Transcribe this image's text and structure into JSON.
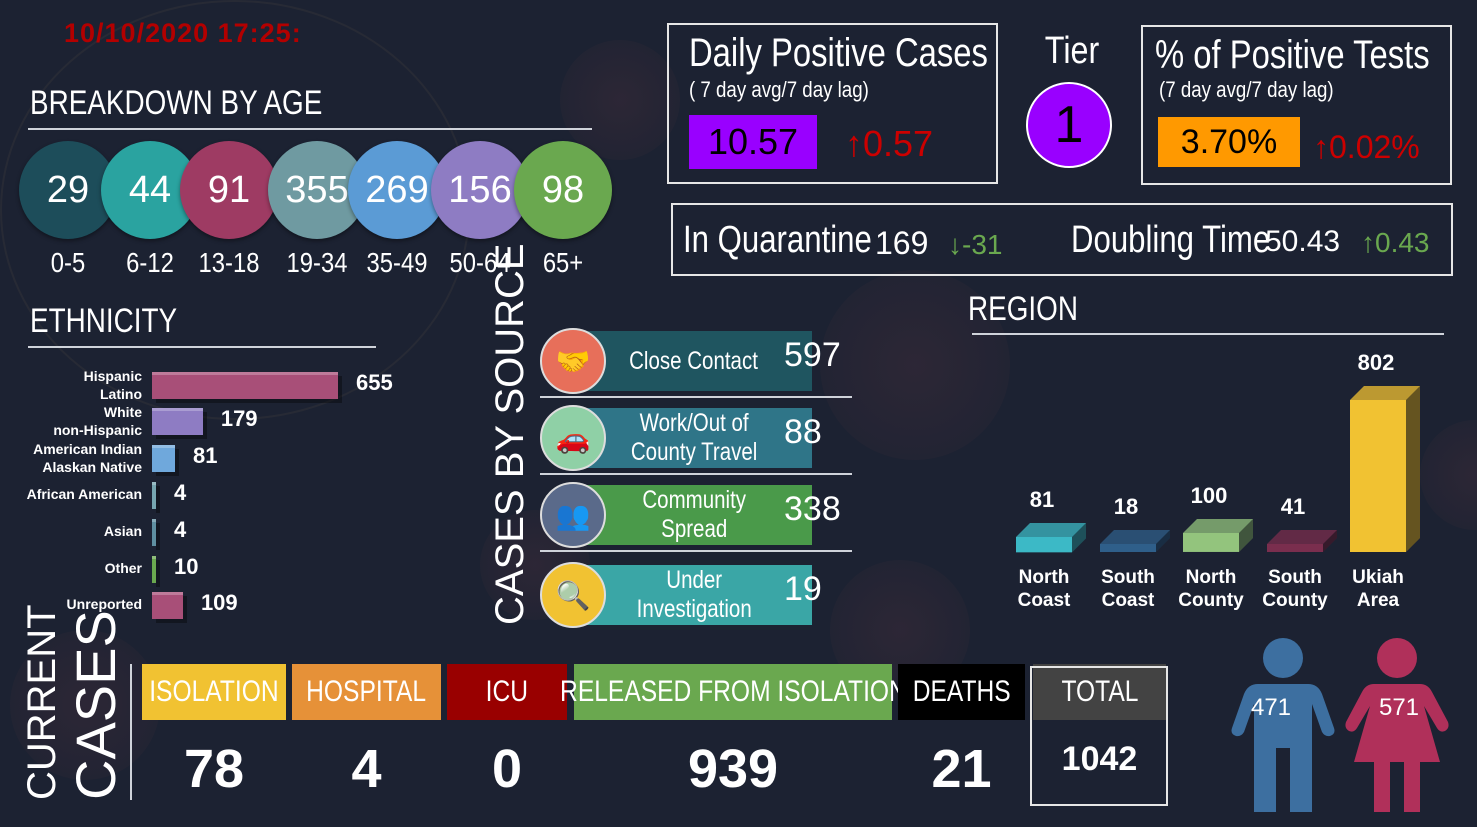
{
  "timestamp": "10/10/2020 17:25:",
  "age": {
    "title": "BREAKDOWN BY AGE",
    "groups": [
      {
        "label": "0-5",
        "value": "29",
        "color": "#1d4d5a"
      },
      {
        "label": "6-12",
        "value": "44",
        "color": "#2aa3a0"
      },
      {
        "label": "13-18",
        "value": "91",
        "color": "#9e3b63"
      },
      {
        "label": "19-34",
        "value": "355",
        "color": "#6f9aa1"
      },
      {
        "label": "35-49",
        "value": "269",
        "color": "#5b9bd5"
      },
      {
        "label": "50-64",
        "value": "156",
        "color": "#8e7cc3"
      },
      {
        "label": "65+",
        "value": "98",
        "color": "#6aa84f"
      }
    ]
  },
  "ethnicity": {
    "title": "ETHNICITY",
    "rows": [
      {
        "label1": "Hispanic",
        "label2": "Latino",
        "value": "655",
        "num": 655,
        "color": "#a84f78"
      },
      {
        "label1": "White",
        "label2": "non-Hispanic",
        "value": "179",
        "num": 179,
        "color": "#8e7cc3"
      },
      {
        "label1": "American Indian",
        "label2": "Alaskan Native",
        "value": "81",
        "num": 81,
        "color": "#6fa8dc"
      },
      {
        "label1": "African American",
        "label2": "",
        "value": "4",
        "num": 4,
        "color": "#76a5af"
      },
      {
        "label1": "Asian",
        "label2": "",
        "value": "4",
        "num": 4,
        "color": "#5f8fa0"
      },
      {
        "label1": "Other",
        "label2": "",
        "value": "10",
        "num": 10,
        "color": "#6aa84f"
      },
      {
        "label1": "Unreported",
        "label2": "",
        "value": "109",
        "num": 109,
        "color": "#a84f78"
      }
    ]
  },
  "source": {
    "title": "CASES BY SOURCE",
    "rows": [
      {
        "label1": "Close Contact",
        "label2": "",
        "value": "597",
        "color": "#1f5560",
        "icon": "handshake-icon"
      },
      {
        "label1": "Work/Out of",
        "label2": "County Travel",
        "value": "88",
        "color": "#2f7588",
        "icon": "car-icon"
      },
      {
        "label1": "Community",
        "label2": "Spread",
        "value": "338",
        "color": "#4a9a4a",
        "icon": "people-network-icon"
      },
      {
        "label1": "Under",
        "label2": "Investigation",
        "value": "19",
        "color": "#3aa6a6",
        "icon": "magnifier-icon"
      }
    ]
  },
  "daily": {
    "title": "Daily Positive Cases",
    "subtitle": "( 7 day avg/7 day lag)",
    "value": "10.57",
    "change": "0.57",
    "value_color": "#9900ff",
    "change_color": "#cc0000"
  },
  "tier": {
    "label": "Tier",
    "value": "1",
    "color": "#9900ff"
  },
  "pct": {
    "title": "% of Positive Tests",
    "subtitle": "(7 day avg/7 day lag)",
    "value": "3.70%",
    "change": "0.02%",
    "value_color": "#ff9900",
    "change_color": "#cc0000"
  },
  "quarantine": {
    "label": "In Quarantine",
    "value": "169",
    "change": "-31",
    "change_color": "#6aa84f"
  },
  "doubling": {
    "label": "Doubling Time",
    "value": "50.43",
    "change": "0.43",
    "change_color": "#6aa84f"
  },
  "region": {
    "title": "REGION",
    "rows": [
      {
        "label1": "North",
        "label2": "Coast",
        "value": "81",
        "num": 81,
        "color": "#3cb9c6"
      },
      {
        "label1": "South",
        "label2": "Coast",
        "value": "18",
        "num": 18,
        "color": "#2f5f8a"
      },
      {
        "label1": "North",
        "label2": "County",
        "value": "100",
        "num": 100,
        "color": "#93c47d"
      },
      {
        "label1": "South",
        "label2": "County",
        "value": "41",
        "num": 41,
        "color": "#7a2e4e"
      },
      {
        "label1": "Ukiah",
        "label2": "Area",
        "value": "802",
        "num": 802,
        "color": "#f1c232"
      }
    ]
  },
  "current": {
    "title1": "CURRENT",
    "title2": "CASES",
    "cols": [
      {
        "label": "ISOLATION",
        "value": "78",
        "color": "#f1c232"
      },
      {
        "label": "HOSPITAL",
        "value": "4",
        "color": "#e69138"
      },
      {
        "label": "ICU",
        "value": "0",
        "color": "#990000"
      },
      {
        "label": "RELEASED FROM ISOLATION",
        "value": "939",
        "color": "#6aa84f"
      },
      {
        "label": "DEATHS",
        "value": "21",
        "color": "#000000"
      },
      {
        "label": "TOTAL",
        "value": "1042",
        "color": "#434343"
      }
    ]
  },
  "gender": {
    "male": {
      "value": "471",
      "color": "#3d6fa0"
    },
    "female": {
      "value": "571",
      "color": "#b0305a"
    }
  }
}
